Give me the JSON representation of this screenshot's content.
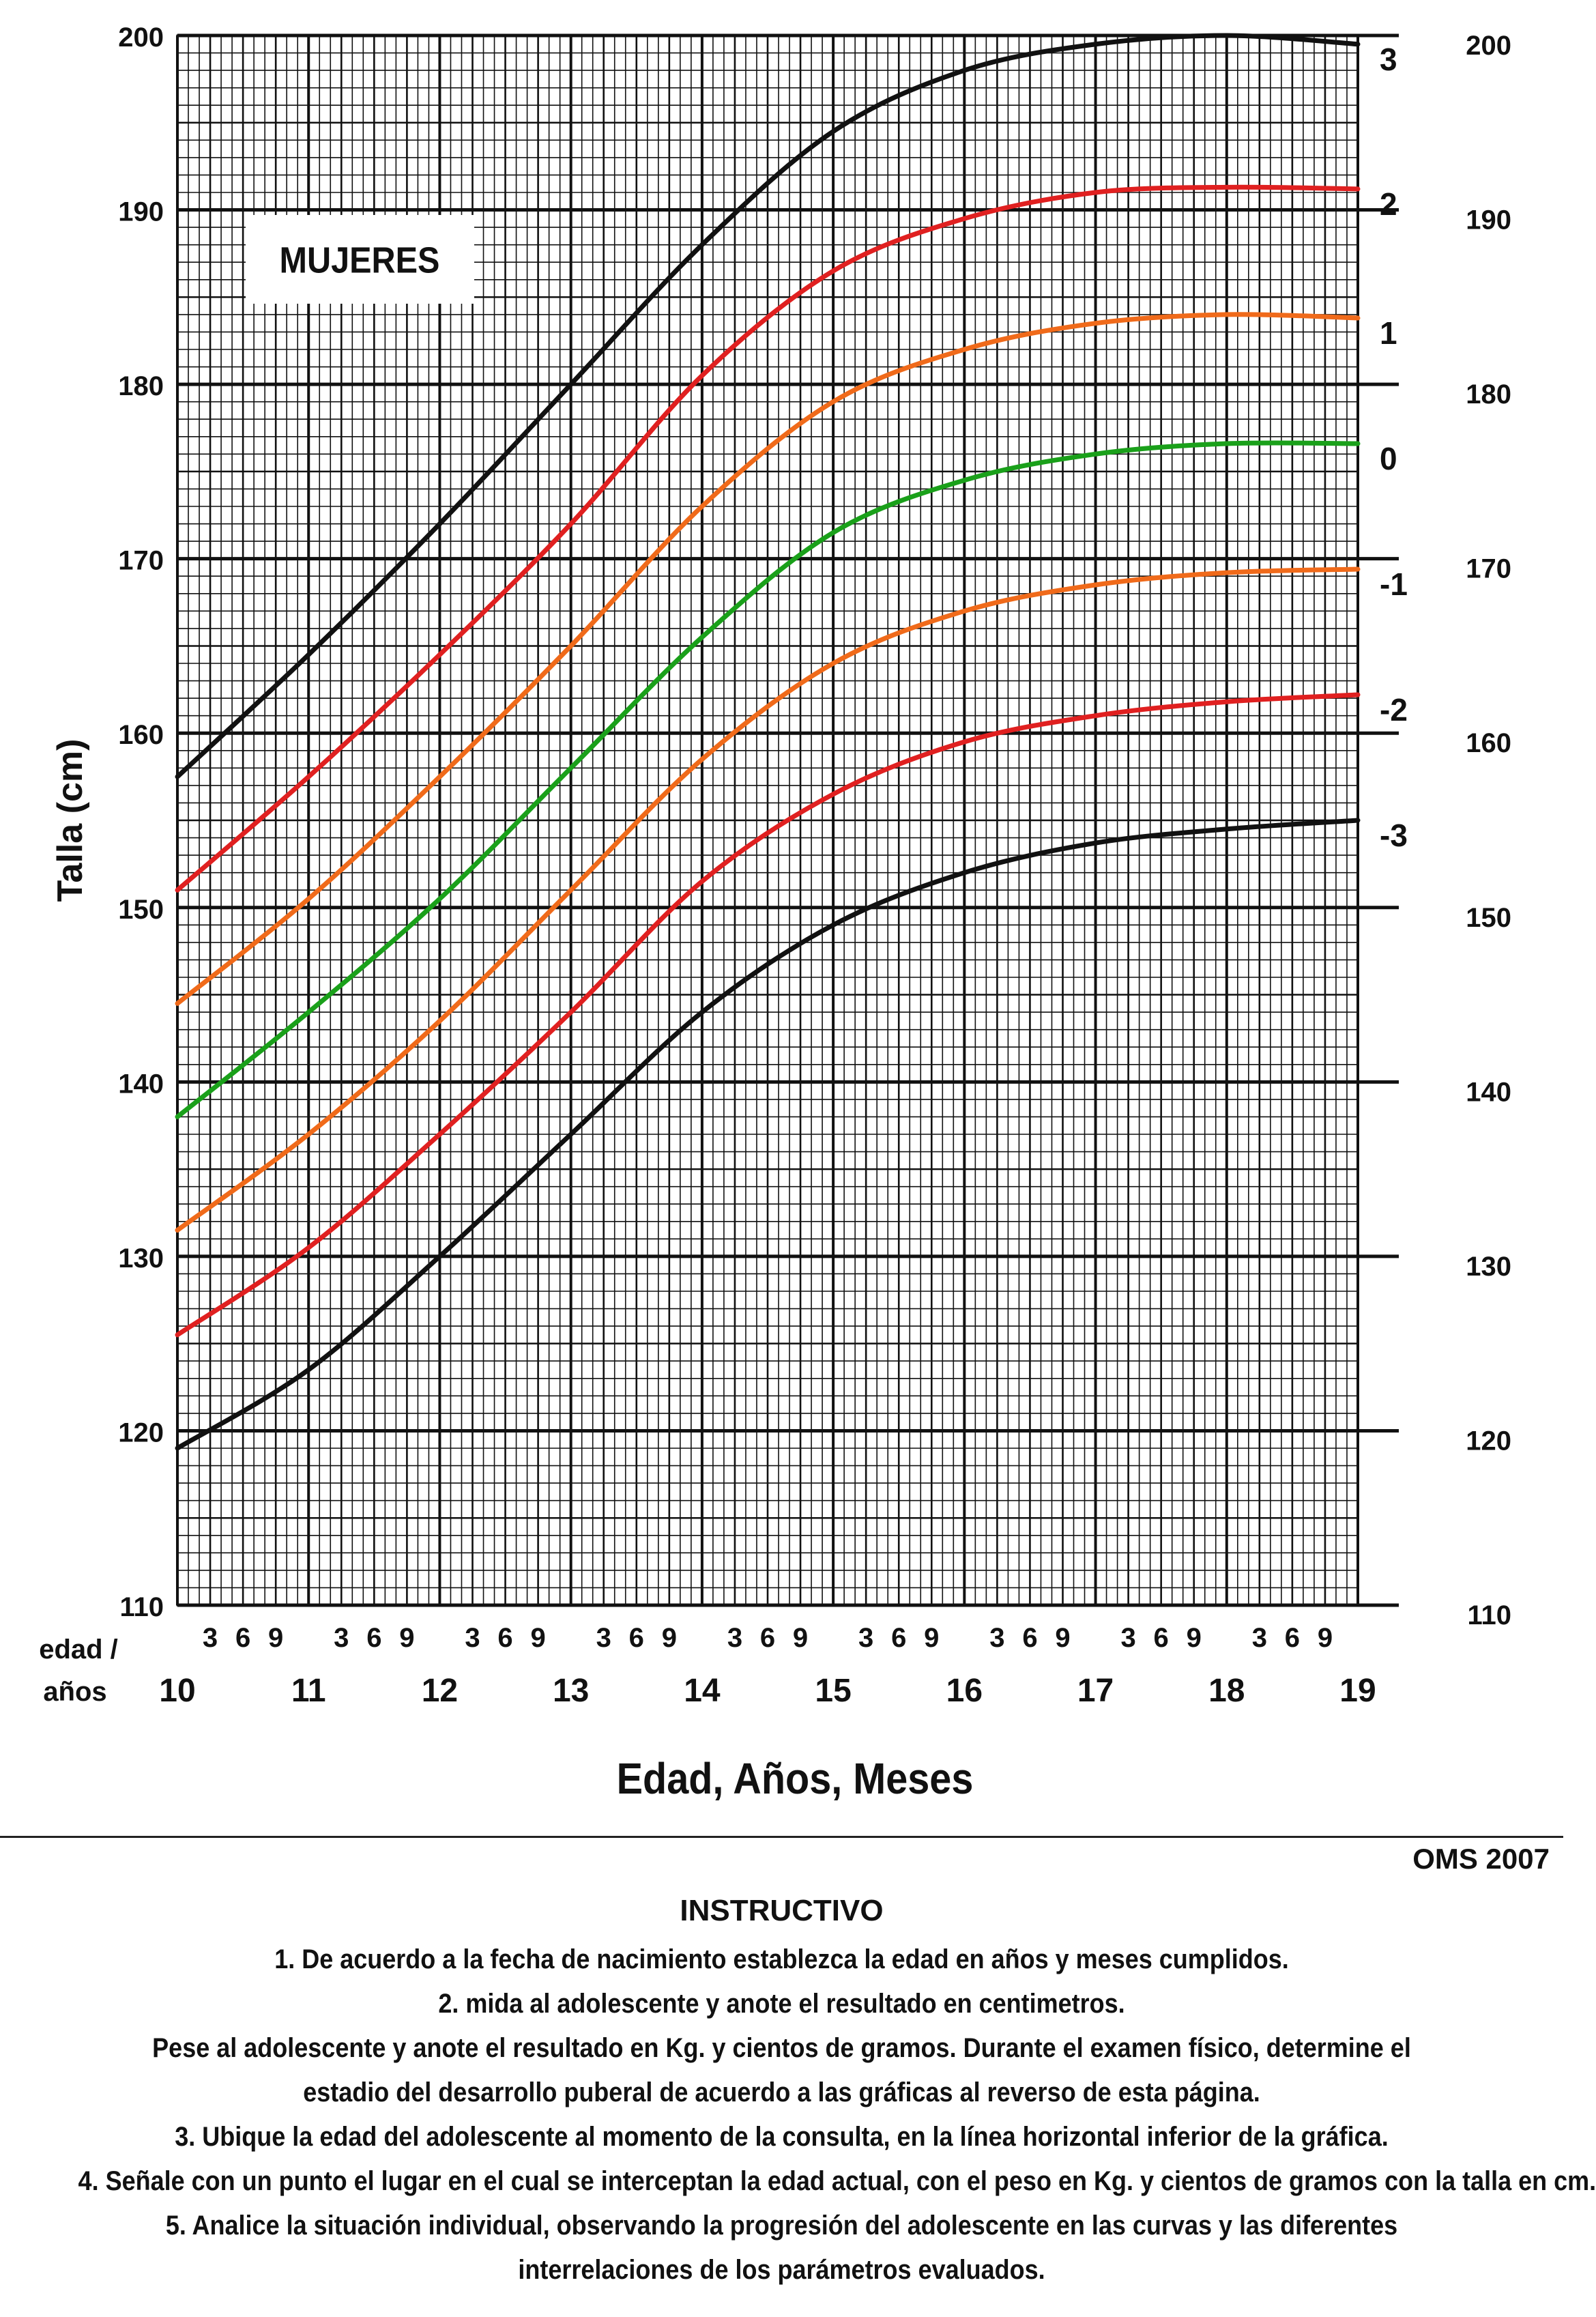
{
  "chart_data": {
    "type": "line",
    "title": "MUJERES",
    "xlabel": "Edad, Años, Meses",
    "ylabel": "Talla (cm)",
    "x_row_label": [
      "edad /",
      "años"
    ],
    "xlim": [
      10,
      19
    ],
    "ylim": [
      110,
      200
    ],
    "y_ticks": [
      "110",
      "120",
      "130",
      "140",
      "150",
      "160",
      "170",
      "180",
      "190",
      "200"
    ],
    "x_year_ticks": [
      "10",
      "11",
      "12",
      "13",
      "14",
      "15",
      "16",
      "17",
      "18",
      "19"
    ],
    "x_month_ticks": [
      "3",
      "6",
      "9"
    ],
    "grid": true,
    "x": [
      10,
      11,
      12,
      13,
      14,
      15,
      16,
      17,
      18,
      19
    ],
    "series": [
      {
        "name": "3",
        "color": "#111111",
        "values": [
          157.5,
          164.5,
          172.0,
          180.0,
          188.0,
          194.5,
          198.0,
          199.5,
          200.0,
          199.5
        ]
      },
      {
        "name": "2",
        "color": "#e02020",
        "values": [
          151.0,
          157.5,
          164.5,
          172.0,
          180.5,
          186.5,
          189.5,
          191.0,
          191.3,
          191.2
        ]
      },
      {
        "name": "1",
        "color": "#f06a1a",
        "values": [
          144.5,
          150.5,
          157.5,
          165.0,
          173.0,
          179.0,
          182.0,
          183.5,
          184.0,
          183.8
        ]
      },
      {
        "name": "0",
        "color": "#1aa01a",
        "values": [
          138.0,
          144.0,
          150.5,
          158.0,
          165.5,
          171.5,
          174.5,
          176.0,
          176.6,
          176.6
        ]
      },
      {
        "name": "-1",
        "color": "#f06a1a",
        "values": [
          131.5,
          137.0,
          143.5,
          151.0,
          158.5,
          164.0,
          167.0,
          168.5,
          169.2,
          169.4
        ]
      },
      {
        "name": "-2",
        "color": "#e02020",
        "values": [
          125.5,
          130.5,
          137.0,
          144.0,
          151.5,
          156.5,
          159.5,
          161.0,
          161.8,
          162.2
        ]
      },
      {
        "name": "-3",
        "color": "#111111",
        "values": [
          119.0,
          123.5,
          130.0,
          137.0,
          144.0,
          149.0,
          152.0,
          153.7,
          154.5,
          155.0
        ]
      }
    ]
  },
  "source": "OMS 2007",
  "instructions": {
    "title": "INSTRUCTIVO",
    "lines": [
      "1. De acuerdo a la fecha de nacimiento establezca la edad en años y meses cumplidos.",
      "2. mida al adolescente y anote el resultado en centimetros.",
      "Pese al adolescente y anote el resultado en Kg. y cientos de gramos. Durante el examen físico, determine el",
      "estadio del desarrollo puberal de acuerdo a las gráficas al reverso de esta página.",
      "3. Ubique la edad del adolescente al momento de la consulta, en la línea horizontal inferior de la gráfica.",
      "4. Señale con un punto el lugar en el cual se interceptan la edad actual, con el peso en Kg. y cientos de gramos con la talla en cm.",
      "5. Analice la situación individual, observando la progresión del adolescente en las curvas y las diferentes",
      "interrelaciones de los parámetros evaluados."
    ]
  }
}
